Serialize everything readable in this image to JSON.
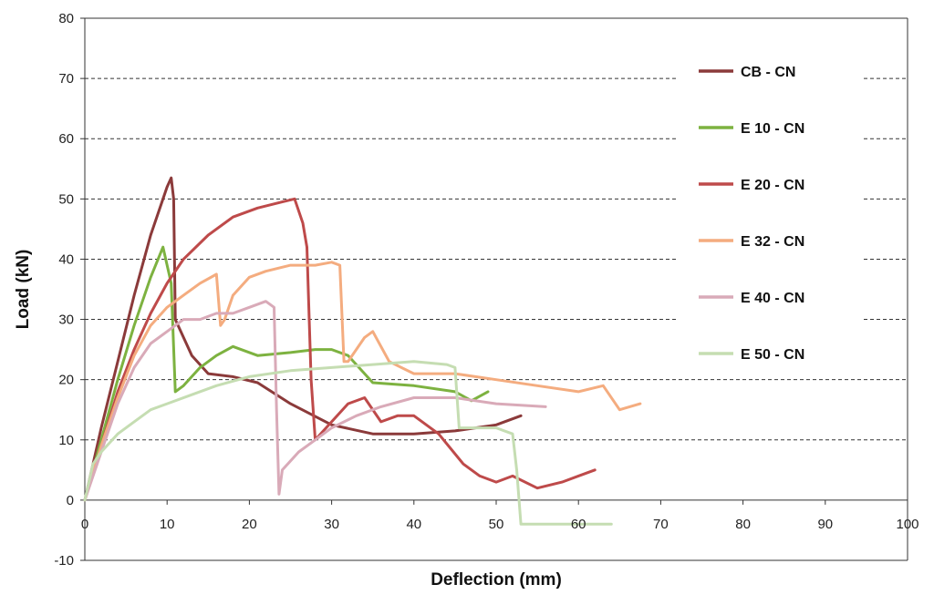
{
  "chart_data": {
    "type": "line",
    "title": "",
    "xlabel": "Deflection (mm)",
    "ylabel": "Load (kN)",
    "xlim": [
      0,
      100
    ],
    "ylim": [
      -10,
      80
    ],
    "xticks": [
      0,
      10,
      20,
      30,
      40,
      50,
      60,
      70,
      80,
      90,
      100
    ],
    "yticks": [
      -10,
      0,
      10,
      20,
      30,
      40,
      50,
      60,
      70,
      80
    ],
    "xtick_labels": [
      "0",
      "10",
      "20",
      "30",
      "40",
      "50",
      "60",
      "70",
      "80",
      "90",
      "100"
    ],
    "ytick_labels": [
      "-10",
      "0",
      "10",
      "20",
      "30",
      "40",
      "50",
      "60",
      "70",
      "80"
    ],
    "grid": "horizontal dashed",
    "legend_position": "top-right",
    "series": [
      {
        "name": "CB - CN",
        "color": "#8B3A3A",
        "x": [
          0,
          2,
          4,
          6,
          8,
          10,
          10.5,
          10.8,
          11,
          13,
          15,
          18,
          21,
          25,
          30,
          35,
          40,
          45,
          50,
          53
        ],
        "y": [
          0,
          12,
          23,
          34,
          44,
          52,
          53.5,
          50,
          30,
          24,
          21,
          20.5,
          19.5,
          16,
          12.5,
          11,
          11,
          11.5,
          12.5,
          14
        ]
      },
      {
        "name": "E 10 - CN",
        "color": "#7DB240",
        "x": [
          0,
          2,
          4,
          6,
          8,
          9.5,
          10.5,
          11,
          12,
          14,
          16,
          18,
          21,
          25,
          28,
          30,
          32,
          35,
          40,
          45,
          47,
          49
        ],
        "y": [
          0,
          10,
          20,
          29,
          37,
          42,
          36,
          18,
          19,
          22,
          24,
          25.5,
          24,
          24.5,
          25,
          25,
          24,
          19.5,
          19,
          18,
          16.5,
          18
        ]
      },
      {
        "name": "E 20 - CN",
        "color": "#BE4A4A",
        "x": [
          0,
          2,
          4,
          6,
          8,
          10,
          12,
          15,
          18,
          21,
          24,
          25.5,
          26.5,
          27,
          27.5,
          28,
          30,
          32,
          34,
          36,
          38,
          40,
          43,
          46,
          48,
          50,
          52,
          55,
          58,
          62
        ],
        "y": [
          0,
          9,
          18,
          25,
          31,
          36,
          40,
          44,
          47,
          48.5,
          49.5,
          50,
          46,
          42,
          20,
          10,
          13,
          16,
          17,
          13,
          14,
          14,
          11,
          6,
          4,
          3,
          4,
          2,
          3,
          5
        ]
      },
      {
        "name": "E 32 - CN",
        "color": "#F4AC7F",
        "x": [
          0,
          2,
          4,
          6,
          8,
          10,
          12,
          14,
          16,
          16.5,
          17,
          18,
          20,
          22,
          25,
          28,
          30,
          31,
          31.5,
          32,
          34,
          35,
          37,
          40,
          45,
          50,
          55,
          60,
          63,
          65,
          67.5
        ],
        "y": [
          0,
          9,
          17,
          24,
          29,
          32,
          34,
          36,
          37.5,
          29,
          30,
          34,
          37,
          38,
          39,
          39,
          39.5,
          39,
          23,
          23,
          27,
          28,
          23,
          21,
          21,
          20,
          19,
          18,
          19,
          15,
          16
        ]
      },
      {
        "name": "E 40 - CN",
        "color": "#D9AAB8",
        "x": [
          0,
          2,
          4,
          6,
          8,
          10,
          12,
          14,
          16,
          18,
          20,
          22,
          23,
          23.3,
          23.6,
          24,
          26,
          28,
          30,
          33,
          36,
          40,
          45,
          50,
          56
        ],
        "y": [
          0,
          8,
          16,
          22,
          26,
          28,
          30,
          30,
          31,
          31,
          32,
          33,
          32,
          15,
          1,
          5,
          8,
          10,
          12,
          14,
          15.5,
          17,
          17,
          16,
          15.5
        ]
      },
      {
        "name": "E 50 - CN",
        "color": "#C5DDB2",
        "x": [
          0,
          1,
          2,
          4,
          6,
          8,
          10,
          13,
          16,
          20,
          25,
          30,
          35,
          40,
          44,
          45,
          45.5,
          46,
          50,
          52,
          52.5,
          53,
          55,
          58,
          60,
          64
        ],
        "y": [
          0,
          6,
          8,
          11,
          13,
          15,
          16,
          17.5,
          19,
          20.5,
          21.5,
          22,
          22.5,
          23,
          22.5,
          22,
          12,
          12,
          12,
          11,
          5,
          -4,
          -4,
          -4,
          -4,
          -4
        ]
      }
    ]
  }
}
